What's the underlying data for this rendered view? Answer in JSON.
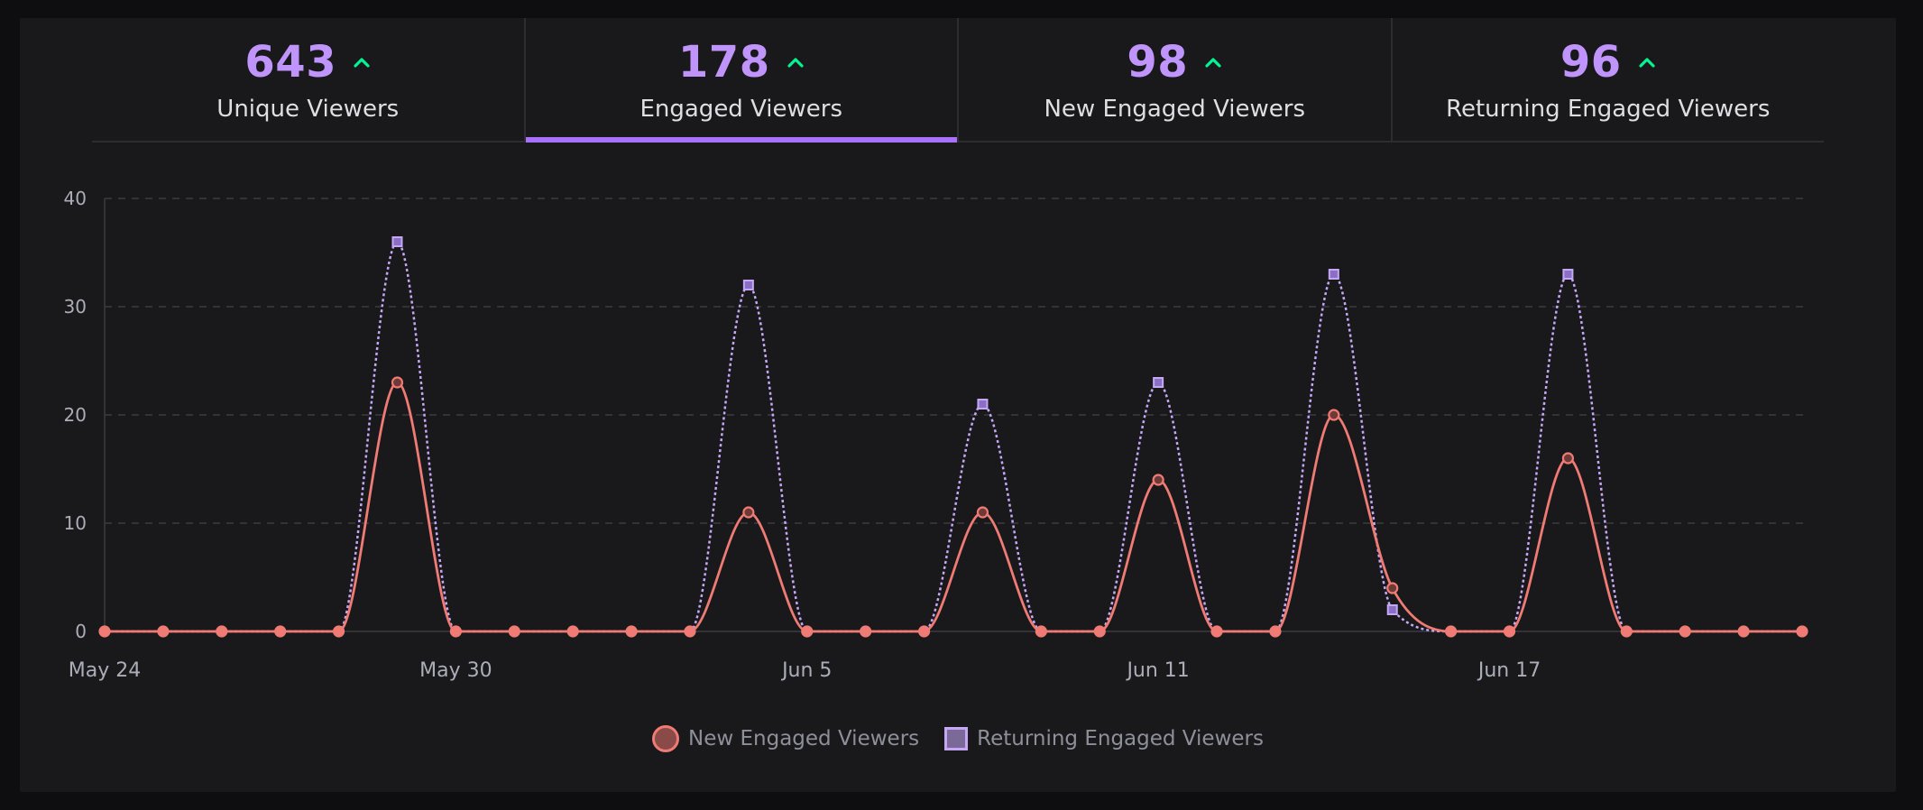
{
  "colors": {
    "accent": "#a970ff",
    "stat_value": "#bf94ff",
    "trend_up": "#00f593",
    "new_series": "#ef7b74",
    "returning_series": "#c4a8f5"
  },
  "tabs": [
    {
      "value": "643",
      "label": "Unique Viewers",
      "trend": "up-arrow-icon",
      "active": false
    },
    {
      "value": "178",
      "label": "Engaged Viewers",
      "trend": "up-arrow-icon",
      "active": true
    },
    {
      "value": "98",
      "label": "New Engaged Viewers",
      "trend": "up-arrow-icon",
      "active": false
    },
    {
      "value": "96",
      "label": "Returning Engaged Viewers",
      "trend": "up-arrow-icon",
      "active": false
    }
  ],
  "legend": {
    "new": "New Engaged Viewers",
    "returning": "Returning Engaged Viewers"
  },
  "chart_data": {
    "type": "line",
    "x": [
      "May 24",
      "May 25",
      "May 26",
      "May 27",
      "May 28",
      "May 29",
      "May 30",
      "May 31",
      "Jun 1",
      "Jun 2",
      "Jun 3",
      "Jun 4",
      "Jun 5",
      "Jun 6",
      "Jun 7",
      "Jun 8",
      "Jun 9",
      "Jun 10",
      "Jun 11",
      "Jun 12",
      "Jun 13",
      "Jun 14",
      "Jun 15",
      "Jun 16",
      "Jun 17",
      "Jun 18",
      "Jun 19",
      "Jun 20",
      "Jun 21",
      "Jun 22"
    ],
    "x_tick_labels": [
      "May 24",
      "May 30",
      "Jun 5",
      "Jun 11",
      "Jun 17"
    ],
    "y_ticks": [
      0,
      10,
      20,
      30,
      40
    ],
    "ylim": [
      0,
      40
    ],
    "grid": true,
    "legend_position": "bottom-center",
    "series": [
      {
        "name": "New Engaged Viewers",
        "marker": "circle",
        "values": [
          0,
          0,
          0,
          0,
          0,
          23,
          0,
          0,
          0,
          0,
          0,
          11,
          0,
          0,
          0,
          11,
          0,
          0,
          14,
          0,
          0,
          20,
          4,
          0,
          0,
          16,
          0,
          0,
          0,
          0
        ]
      },
      {
        "name": "Returning Engaged Viewers",
        "marker": "square",
        "dashed": true,
        "values": [
          0,
          0,
          0,
          0,
          0,
          36,
          0,
          0,
          0,
          0,
          0,
          32,
          0,
          0,
          0,
          21,
          0,
          0,
          23,
          0,
          0,
          33,
          2,
          0,
          0,
          33,
          0,
          0,
          0,
          0
        ]
      }
    ]
  }
}
